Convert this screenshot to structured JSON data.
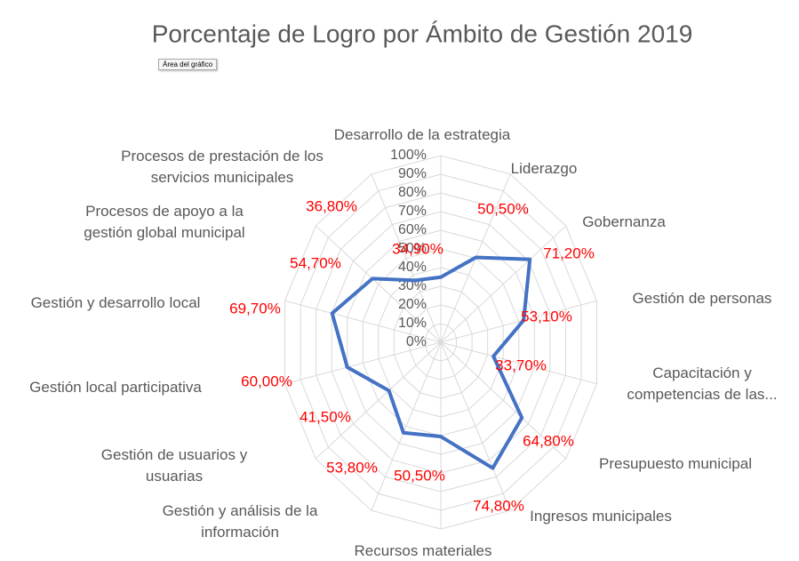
{
  "chart_data": {
    "type": "radar",
    "title": "Porcentaje de Logro por Ámbito de Gestión 2019",
    "annotation": "Área del gráfico",
    "categories": [
      "Desarrollo de la estrategia",
      "Liderazgo",
      "Gobernanza",
      "Gestión de personas",
      "Capacitación y competencias de las...",
      "Presupuesto municipal",
      "Ingresos municipales",
      "Recursos materiales",
      "Gestión y análisis de la información",
      "Gestión de usuarios y usuarias",
      "Gestión local participativa",
      "Gestión y desarrollo local",
      "Procesos de apoyo a la gestión global municipal",
      "Procesos de prestación de los servicios municipales"
    ],
    "series": [
      {
        "color": "#4472c4",
        "values": [
          34.9,
          50.5,
          71.2,
          53.1,
          33.7,
          64.8,
          74.8,
          50.5,
          53.8,
          41.5,
          60.0,
          69.7,
          54.7,
          36.8
        ],
        "value_labels": [
          "34,90%",
          "50,50%",
          "71,20%",
          "53,10%",
          "33,70%",
          "64,80%",
          "74,80%",
          "50,50%",
          "53,80%",
          "41,50%",
          "60,00%",
          "69,70%",
          "54,70%",
          "36,80%"
        ]
      }
    ],
    "label_color": "#ff0000",
    "ylim": [
      0,
      100
    ],
    "yticks": [
      {
        "value": 0,
        "label": "0%"
      },
      {
        "value": 10,
        "label": "10%"
      },
      {
        "value": 20,
        "label": "20%"
      },
      {
        "value": 30,
        "label": "30%"
      },
      {
        "value": 40,
        "label": "40%"
      },
      {
        "value": 50,
        "label": "50%"
      },
      {
        "value": 60,
        "label": "60%"
      },
      {
        "value": 70,
        "label": "70%"
      },
      {
        "value": 80,
        "label": "80%"
      },
      {
        "value": 90,
        "label": "90%"
      },
      {
        "value": 100,
        "label": "100%"
      }
    ],
    "grid": true
  }
}
